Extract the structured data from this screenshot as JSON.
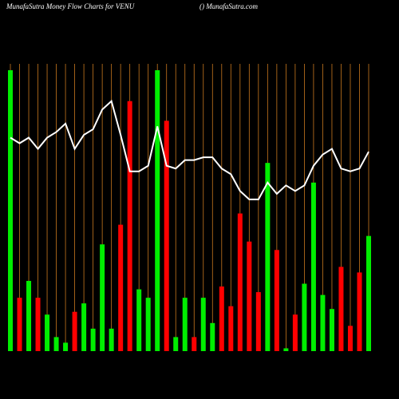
{
  "chart_data": {
    "type": "bar",
    "title": "MunafaSutra  Money Flow  Charts for VENU",
    "subtitle": "() MunafaSutra.com",
    "categories": [
      null,
      null,
      null,
      null,
      null,
      null,
      null,
      null,
      null,
      null,
      null,
      null,
      null,
      null,
      null,
      null,
      null,
      null,
      null,
      null,
      null,
      null,
      null,
      null,
      null,
      null,
      null,
      null,
      null,
      null,
      null,
      null,
      null,
      null,
      null,
      null,
      null,
      null,
      null,
      null
    ],
    "values": [
      100,
      19,
      25,
      19,
      13,
      5,
      3,
      14,
      17,
      8,
      38,
      8,
      45,
      89,
      22,
      19,
      100,
      82,
      5,
      19,
      5,
      19,
      10,
      23,
      16,
      49,
      39,
      21,
      67,
      36,
      1,
      13,
      24,
      60,
      20,
      15,
      30,
      9,
      28,
      41
    ],
    "colors": [
      "#00ee00",
      "#ff0000",
      "#00ee00",
      "#ff0000",
      "#00ee00",
      "#00ee00",
      "#00ee00",
      "#ff0000",
      "#00ee00",
      "#00ee00",
      "#00ee00",
      "#00ee00",
      "#ff0000",
      "#ff0000",
      "#00ee00",
      "#00ee00",
      "#00ee00",
      "#ff0000",
      "#00ee00",
      "#00ee00",
      "#ff0000",
      "#00ee00",
      "#00ee00",
      "#ff0000",
      "#ff0000",
      "#ff0000",
      "#ff0000",
      "#ff0000",
      "#00ee00",
      "#ff0000",
      "#00ee00",
      "#ff0000",
      "#00ee00",
      "#00ee00",
      "#00ee00",
      "#00ee00",
      "#ff0000",
      "#ff0000",
      "#ff0000",
      "#00ee00"
    ],
    "line_values": [
      76,
      74,
      76,
      72,
      76,
      78,
      81,
      72,
      77,
      79,
      86,
      89,
      77,
      64,
      64,
      66,
      80,
      66,
      65,
      68,
      68,
      69,
      69,
      65,
      63,
      57,
      54,
      54,
      60,
      56,
      59,
      57,
      59,
      66,
      70,
      72,
      65,
      64,
      65,
      71
    ],
    "line_color": "#ffffff",
    "guide_color": "#c8781e",
    "ylim": [
      0,
      100
    ]
  }
}
